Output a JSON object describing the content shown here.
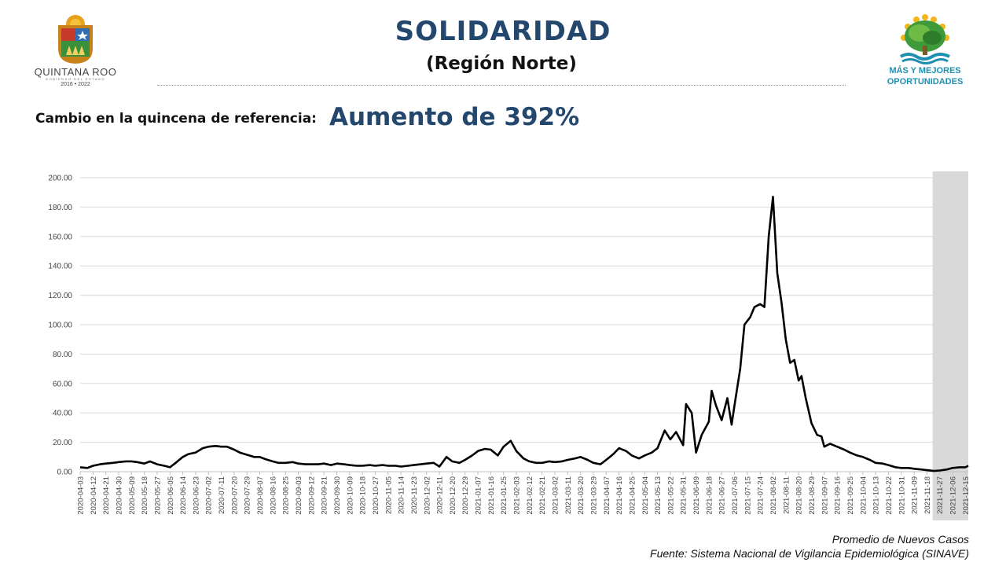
{
  "header": {
    "title": "SOLIDARIDAD",
    "subtitle": "(Región Norte)",
    "change_label": "Cambio en la quincena de referencia:",
    "change_value": "Aumento de 392%"
  },
  "logos": {
    "left": {
      "name": "QUINTANA ROO",
      "tagline": "GOBIERNO DEL ESTADO",
      "years": "2016 • 2022"
    },
    "right": {
      "line1": "MÁS Y MEJORES",
      "line2": "OPORTUNIDADES"
    }
  },
  "colors": {
    "title": "#24476e",
    "line": "#000000",
    "grid": "#d9d9d9",
    "shade": "#d9d9d9",
    "logo_right": "#1f8fb0"
  },
  "footer": {
    "series_label": "Promedio de Nuevos Casos",
    "source": "Fuente: Sistema Nacional de Vigilancia Epidemiológica (SINAVE)"
  },
  "chart_data": {
    "type": "line",
    "title": "",
    "xlabel": "",
    "ylabel": "",
    "ylim": [
      0,
      200
    ],
    "grid": true,
    "shaded_period": [
      "2021-11-22",
      "2021-12-17"
    ],
    "y_tick_labels": [
      "0.00",
      "20.00",
      "40.00",
      "60.00",
      "80.00",
      "100.00",
      "120.00",
      "140.00",
      "160.00",
      "180.00",
      "200.00"
    ],
    "x_tick_labels": [
      "2020-04-03",
      "2020-04-12",
      "2020-04-21",
      "2020-04-30",
      "2020-05-09",
      "2020-05-18",
      "2020-05-27",
      "2020-06-05",
      "2020-06-14",
      "2020-06-23",
      "2020-07-02",
      "2020-07-11",
      "2020-07-20",
      "2020-07-29",
      "2020-08-07",
      "2020-08-16",
      "2020-08-25",
      "2020-09-03",
      "2020-09-12",
      "2020-09-21",
      "2020-09-30",
      "2020-10-09",
      "2020-10-18",
      "2020-10-27",
      "2020-11-05",
      "2020-11-14",
      "2020-11-23",
      "2020-12-02",
      "2020-12-11",
      "2020-12-20",
      "2020-12-29",
      "2021-01-07",
      "2021-01-16",
      "2021-01-25",
      "2021-02-03",
      "2021-02-12",
      "2021-02-21",
      "2021-03-02",
      "2021-03-11",
      "2021-03-20",
      "2021-03-29",
      "2021-04-07",
      "2021-04-16",
      "2021-04-25",
      "2021-05-04",
      "2021-05-13",
      "2021-05-22",
      "2021-05-31",
      "2021-06-09",
      "2021-06-18",
      "2021-06-27",
      "2021-07-06",
      "2021-07-15",
      "2021-07-24",
      "2021-08-02",
      "2021-08-11",
      "2021-08-20",
      "2021-08-29",
      "2021-09-07",
      "2021-09-16",
      "2021-09-25",
      "2021-10-04",
      "2021-10-13",
      "2021-10-22",
      "2021-10-31",
      "2021-11-09",
      "2021-11-18",
      "2021-11-27",
      "2021-12-06",
      "2021-12-15"
    ],
    "series": [
      {
        "values": [
          [
            "2020-04-03",
            3
          ],
          [
            "2020-04-08",
            2.5
          ],
          [
            "2020-04-12",
            4
          ],
          [
            "2020-04-17",
            5
          ],
          [
            "2020-04-21",
            5.5
          ],
          [
            "2020-04-26",
            6
          ],
          [
            "2020-04-30",
            6.5
          ],
          [
            "2020-05-05",
            7
          ],
          [
            "2020-05-09",
            7
          ],
          [
            "2020-05-13",
            6.5
          ],
          [
            "2020-05-18",
            5.5
          ],
          [
            "2020-05-22",
            7
          ],
          [
            "2020-05-27",
            5
          ],
          [
            "2020-06-01",
            4
          ],
          [
            "2020-06-05",
            3
          ],
          [
            "2020-06-09",
            6
          ],
          [
            "2020-06-14",
            10
          ],
          [
            "2020-06-18",
            12
          ],
          [
            "2020-06-23",
            13
          ],
          [
            "2020-06-28",
            16
          ],
          [
            "2020-07-02",
            17
          ],
          [
            "2020-07-07",
            17.5
          ],
          [
            "2020-07-11",
            17
          ],
          [
            "2020-07-15",
            17
          ],
          [
            "2020-07-20",
            15
          ],
          [
            "2020-07-24",
            13
          ],
          [
            "2020-07-29",
            11.5
          ],
          [
            "2020-08-03",
            10
          ],
          [
            "2020-08-07",
            10
          ],
          [
            "2020-08-11",
            8.5
          ],
          [
            "2020-08-16",
            7
          ],
          [
            "2020-08-20",
            6
          ],
          [
            "2020-08-25",
            6
          ],
          [
            "2020-08-30",
            6.5
          ],
          [
            "2020-09-03",
            5.5
          ],
          [
            "2020-09-08",
            5
          ],
          [
            "2020-09-12",
            5
          ],
          [
            "2020-09-17",
            5
          ],
          [
            "2020-09-21",
            5.5
          ],
          [
            "2020-09-26",
            4.5
          ],
          [
            "2020-09-30",
            5.5
          ],
          [
            "2020-10-05",
            5
          ],
          [
            "2020-10-09",
            4.5
          ],
          [
            "2020-10-14",
            4
          ],
          [
            "2020-10-18",
            4
          ],
          [
            "2020-10-23",
            4.5
          ],
          [
            "2020-10-27",
            4
          ],
          [
            "2020-11-01",
            4.5
          ],
          [
            "2020-11-05",
            4
          ],
          [
            "2020-11-10",
            4
          ],
          [
            "2020-11-14",
            3.5
          ],
          [
            "2020-11-19",
            4
          ],
          [
            "2020-11-23",
            4.5
          ],
          [
            "2020-11-28",
            5
          ],
          [
            "2020-12-02",
            5.5
          ],
          [
            "2020-12-07",
            6
          ],
          [
            "2020-12-11",
            3.5
          ],
          [
            "2020-12-16",
            10
          ],
          [
            "2020-12-20",
            7
          ],
          [
            "2020-12-25",
            6
          ],
          [
            "2020-12-29",
            8
          ],
          [
            "2021-01-03",
            11
          ],
          [
            "2021-01-07",
            14
          ],
          [
            "2021-01-12",
            15.5
          ],
          [
            "2021-01-16",
            15
          ],
          [
            "2021-01-21",
            11
          ],
          [
            "2021-01-25",
            17
          ],
          [
            "2021-01-30",
            21
          ],
          [
            "2021-02-03",
            14
          ],
          [
            "2021-02-08",
            9
          ],
          [
            "2021-02-12",
            7
          ],
          [
            "2021-02-17",
            6
          ],
          [
            "2021-02-21",
            6
          ],
          [
            "2021-02-26",
            7
          ],
          [
            "2021-03-02",
            6.5
          ],
          [
            "2021-03-07",
            7
          ],
          [
            "2021-03-11",
            8
          ],
          [
            "2021-03-16",
            9
          ],
          [
            "2021-03-20",
            10
          ],
          [
            "2021-03-25",
            8
          ],
          [
            "2021-03-29",
            6
          ],
          [
            "2021-04-03",
            5
          ],
          [
            "2021-04-07",
            8
          ],
          [
            "2021-04-12",
            12
          ],
          [
            "2021-04-16",
            16
          ],
          [
            "2021-04-21",
            14
          ],
          [
            "2021-04-25",
            11
          ],
          [
            "2021-04-30",
            9
          ],
          [
            "2021-05-04",
            11
          ],
          [
            "2021-05-09",
            13
          ],
          [
            "2021-05-13",
            16
          ],
          [
            "2021-05-18",
            28
          ],
          [
            "2021-05-22",
            22
          ],
          [
            "2021-05-26",
            27
          ],
          [
            "2021-05-31",
            18
          ],
          [
            "2021-06-02",
            46
          ],
          [
            "2021-06-06",
            40
          ],
          [
            "2021-06-09",
            13
          ],
          [
            "2021-06-13",
            25
          ],
          [
            "2021-06-18",
            34
          ],
          [
            "2021-06-20",
            55
          ],
          [
            "2021-06-23",
            45
          ],
          [
            "2021-06-27",
            35
          ],
          [
            "2021-07-01",
            50
          ],
          [
            "2021-07-04",
            32
          ],
          [
            "2021-07-06",
            45
          ],
          [
            "2021-07-10",
            70
          ],
          [
            "2021-07-13",
            100
          ],
          [
            "2021-07-17",
            105
          ],
          [
            "2021-07-20",
            112
          ],
          [
            "2021-07-24",
            114
          ],
          [
            "2021-07-27",
            112
          ],
          [
            "2021-07-30",
            160
          ],
          [
            "2021-08-02",
            187
          ],
          [
            "2021-08-05",
            135
          ],
          [
            "2021-08-08",
            115
          ],
          [
            "2021-08-11",
            90
          ],
          [
            "2021-08-14",
            74
          ],
          [
            "2021-08-17",
            76
          ],
          [
            "2021-08-20",
            62
          ],
          [
            "2021-08-22",
            65
          ],
          [
            "2021-08-25",
            50
          ],
          [
            "2021-08-29",
            33
          ],
          [
            "2021-09-02",
            25
          ],
          [
            "2021-09-05",
            24
          ],
          [
            "2021-09-07",
            17
          ],
          [
            "2021-09-11",
            19
          ],
          [
            "2021-09-16",
            17
          ],
          [
            "2021-09-21",
            15
          ],
          [
            "2021-09-25",
            13
          ],
          [
            "2021-09-30",
            11
          ],
          [
            "2021-10-04",
            10
          ],
          [
            "2021-10-09",
            8
          ],
          [
            "2021-10-13",
            6
          ],
          [
            "2021-10-18",
            5.5
          ],
          [
            "2021-10-22",
            4.5
          ],
          [
            "2021-10-27",
            3
          ],
          [
            "2021-10-31",
            2.5
          ],
          [
            "2021-11-05",
            2.5
          ],
          [
            "2021-11-09",
            2
          ],
          [
            "2021-11-14",
            1.5
          ],
          [
            "2021-11-18",
            1
          ],
          [
            "2021-11-23",
            0.5
          ],
          [
            "2021-11-27",
            0.8
          ],
          [
            "2021-12-02",
            1.5
          ],
          [
            "2021-12-06",
            2.5
          ],
          [
            "2021-12-11",
            3
          ],
          [
            "2021-12-15",
            3
          ],
          [
            "2021-12-17",
            4
          ]
        ]
      }
    ]
  }
}
